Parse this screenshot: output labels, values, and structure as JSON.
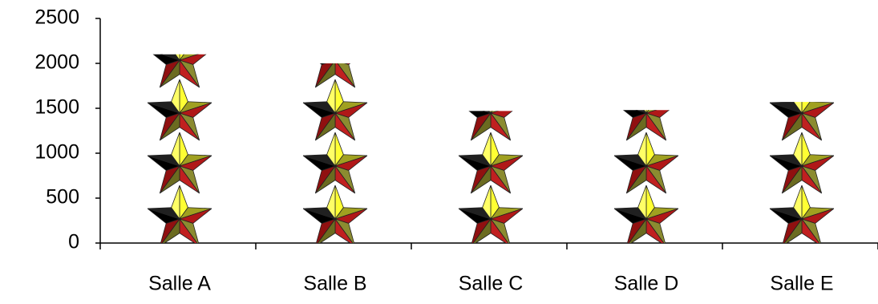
{
  "chart_data": {
    "type": "pictograph",
    "categories": [
      "Salle A",
      "Salle B",
      "Salle C",
      "Salle D",
      "Salle E"
    ],
    "values": [
      2100,
      2000,
      1470,
      1480,
      1570
    ],
    "ylim": [
      0,
      2500
    ],
    "yticks": [
      0,
      500,
      1000,
      1500,
      2000,
      2500
    ]
  }
}
